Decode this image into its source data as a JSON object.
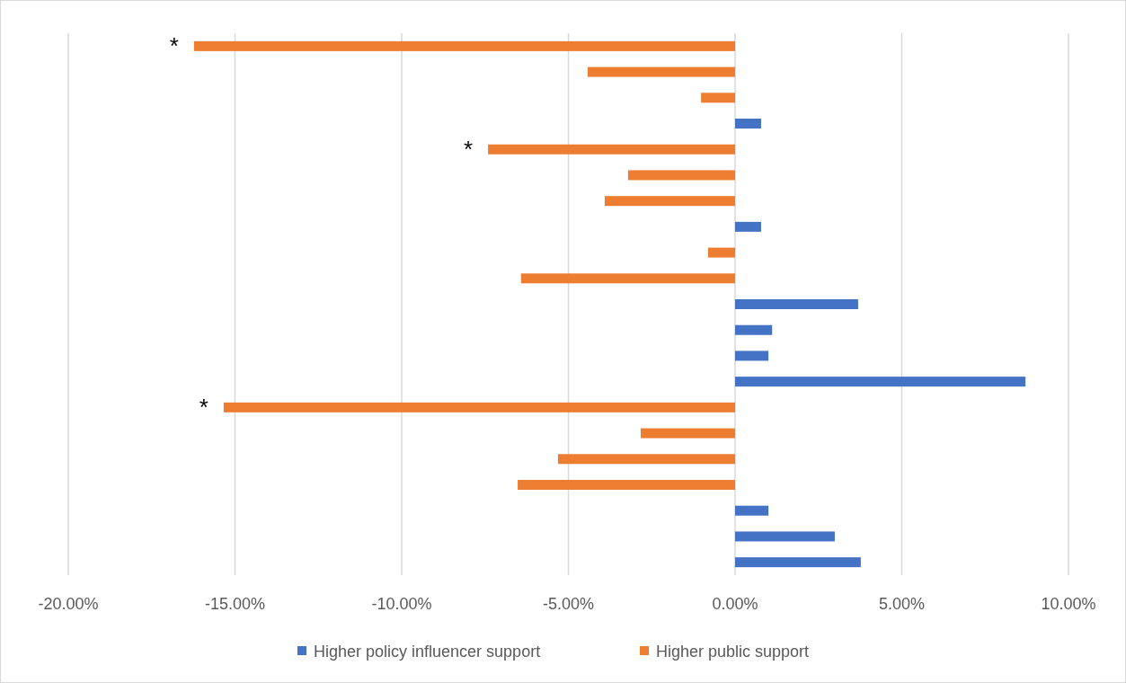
{
  "chart_data": {
    "type": "bar",
    "orientation": "horizontal",
    "categories": [
      null,
      null,
      null,
      null,
      null,
      null,
      null,
      null,
      null,
      null,
      null,
      null,
      null,
      null,
      null,
      null,
      null,
      null,
      null,
      null,
      null
    ],
    "series": [
      {
        "name": "Higher policy influencer support",
        "color": "#4472c4",
        "values": [
          null,
          null,
          null,
          0.78,
          null,
          null,
          null,
          0.78,
          null,
          null,
          3.69,
          1.11,
          1.0,
          8.71,
          null,
          null,
          null,
          null,
          1.0,
          2.99,
          3.77
        ]
      },
      {
        "name": "Higher public support",
        "color": "#ed7d31",
        "values": [
          -16.23,
          -4.42,
          -1.02,
          null,
          -7.41,
          -3.21,
          -3.91,
          null,
          -0.81,
          -6.42,
          null,
          null,
          null,
          null,
          -15.34,
          -2.83,
          -5.31,
          -6.52,
          null,
          null,
          null
        ],
        "value_labels": [
          "*",
          null,
          null,
          null,
          "*",
          null,
          null,
          null,
          null,
          null,
          null,
          null,
          null,
          null,
          "*",
          null,
          null,
          null,
          null,
          null,
          null
        ]
      }
    ],
    "xlim": [
      -20,
      10
    ],
    "xticks": [
      {
        "value": -20,
        "label": "-20.00%"
      },
      {
        "value": -15,
        "label": "-15.00%"
      },
      {
        "value": -10,
        "label": "-10.00%"
      },
      {
        "value": -5,
        "label": "-5.00%"
      },
      {
        "value": 0,
        "label": "0.00%"
      },
      {
        "value": 5,
        "label": "5.00%"
      },
      {
        "value": 10,
        "label": "10.00%"
      }
    ],
    "grid": "x",
    "legend": "bottom"
  }
}
